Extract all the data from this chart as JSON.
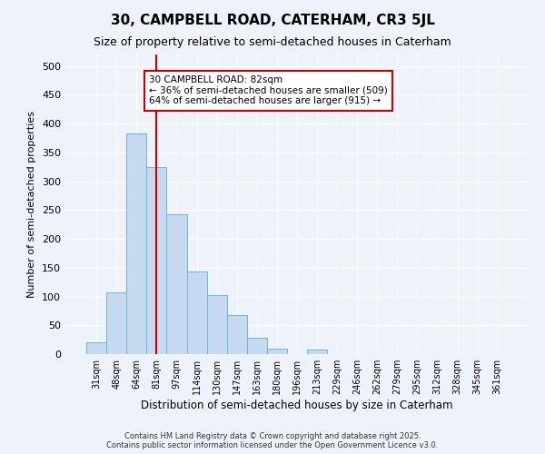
{
  "title": "30, CAMPBELL ROAD, CATERHAM, CR3 5JL",
  "subtitle": "Size of property relative to semi-detached houses in Caterham",
  "xlabel": "Distribution of semi-detached houses by size in Caterham",
  "ylabel": "Number of semi-detached properties",
  "categories": [
    "31sqm",
    "48sqm",
    "64sqm",
    "81sqm",
    "97sqm",
    "114sqm",
    "130sqm",
    "147sqm",
    "163sqm",
    "180sqm",
    "196sqm",
    "213sqm",
    "229sqm",
    "246sqm",
    "262sqm",
    "279sqm",
    "295sqm",
    "312sqm",
    "328sqm",
    "345sqm",
    "361sqm"
  ],
  "values": [
    20,
    107,
    383,
    325,
    243,
    143,
    102,
    68,
    28,
    10,
    0,
    8,
    0,
    0,
    0,
    0,
    0,
    0,
    0,
    0,
    0
  ],
  "bar_color": "#c5d9f1",
  "bar_edge_color": "#7ab0d8",
  "vline_x": 3,
  "vline_color": "#cc0000",
  "annotation_text": "30 CAMPBELL ROAD: 82sqm\n← 36% of semi-detached houses are smaller (509)\n64% of semi-detached houses are larger (915) →",
  "annotation_box_color": "#ffffff",
  "annotation_box_edge": "#cc0000",
  "ylim": [
    0,
    520
  ],
  "yticks": [
    0,
    50,
    100,
    150,
    200,
    250,
    300,
    350,
    400,
    450,
    500
  ],
  "footer": "Contains HM Land Registry data © Crown copyright and database right 2025.\nContains public sector information licensed under the Open Government Licence v3.0.",
  "bg_color": "#eef3fb",
  "plot_bg_color": "#eef3fb",
  "title_fontsize": 11,
  "subtitle_fontsize": 9
}
